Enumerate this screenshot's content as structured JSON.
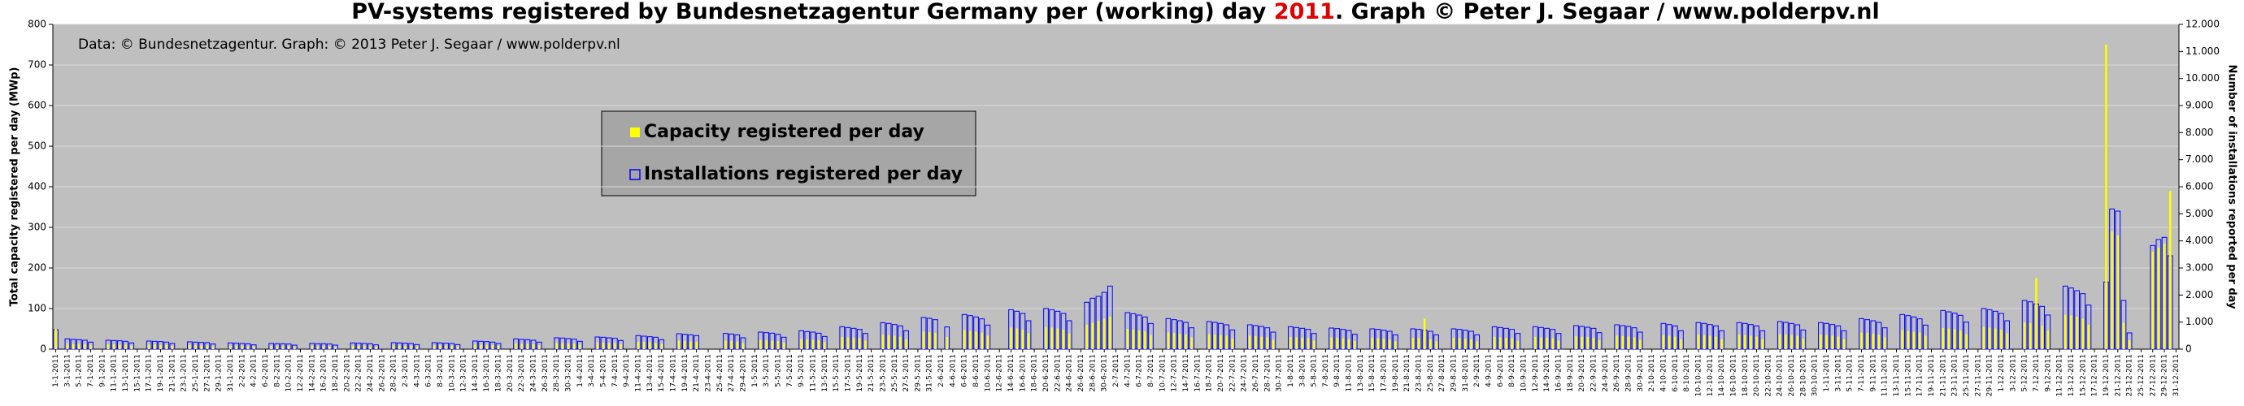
{
  "chart_data": {
    "type": "bar",
    "title": {
      "before": "PV-systems registered by Bundesnetzagentur Germany per (working) day ",
      "highlight": "2011",
      "after": ". Graph © Peter J. Segaar / www.polderpv.nl"
    },
    "annotation": "Data: © Bundesnetzagentur. Graph: © 2013 Peter J. Segaar / www.polderpv.nl",
    "ylabel": "Total capacity registered per day (MWp)",
    "y2label": "Number of installations reported per day",
    "ylim": [
      0,
      800
    ],
    "yticks": [
      0,
      100,
      200,
      300,
      400,
      500,
      600,
      700,
      800
    ],
    "y2lim": [
      0,
      12000
    ],
    "y2ticks": [
      0,
      {
        "value": 1000,
        "label": "1.000"
      },
      {
        "value": 2000,
        "label": "2.000"
      },
      {
        "value": 3000,
        "label": "3.000"
      },
      {
        "value": 4000,
        "label": "4.000"
      },
      {
        "value": 5000,
        "label": "5.000"
      },
      {
        "value": 6000,
        "label": "6.000"
      },
      {
        "value": 7000,
        "label": "7.000"
      },
      {
        "value": 8000,
        "label": "8.000"
      },
      {
        "value": 9000,
        "label": "9.000"
      },
      {
        "value": 10000,
        "label": "10.000"
      },
      {
        "value": 11000,
        "label": "11.000"
      },
      {
        "value": 12000,
        "label": "12.000"
      }
    ],
    "grid": true,
    "legend": "top-left",
    "categories": [
      "1-1-2011",
      null,
      "3-1-2011",
      null,
      "5-1-2011",
      null,
      "7-1-2011",
      null,
      "9-1-2011",
      null,
      "11-1-2011",
      null,
      "13-1-2011",
      null,
      "15-1-2011",
      null,
      "17-1-2011",
      null,
      "19-1-2011",
      null,
      "21-1-2011",
      null,
      "23-1-2011",
      null,
      "25-1-2011",
      null,
      "27-1-2011",
      null,
      "29-1-2011",
      null,
      "31-1-2011",
      null,
      "2-2-2011",
      null,
      "4-2-2011",
      null,
      "6-2-2011",
      null,
      "8-2-2011",
      null,
      "10-2-2011",
      null,
      "12-2-2011",
      null,
      "14-2-2011",
      null,
      "16-2-2011",
      null,
      "18-2-2011",
      null,
      "20-2-2011",
      null,
      "22-2-2011",
      null,
      "24-2-2011",
      null,
      "26-2-2011",
      null,
      "28-2-2011",
      null,
      "2-3-2011",
      null,
      "4-3-2011",
      null,
      "6-3-2011",
      null,
      "8-3-2011",
      null,
      "10-3-2011",
      null,
      "12-3-2011",
      null,
      "14-3-2011",
      null,
      "16-3-2011",
      null,
      "18-3-2011",
      null,
      "20-3-2011",
      null,
      "22-3-2011",
      null,
      "24-3-2011",
      null,
      "26-3-2011",
      null,
      "28-3-2011",
      null,
      "30-3-2011",
      null,
      "1-4-2011",
      null,
      "3-4-2011",
      null,
      "5-4-2011",
      null,
      "7-4-2011",
      null,
      "9-4-2011",
      null,
      "11-4-2011",
      null,
      "13-4-2011",
      null,
      "15-4-2011",
      null,
      "17-4-2011",
      null,
      "19-4-2011",
      null,
      "21-4-2011",
      null,
      "23-4-2011",
      null,
      "25-4-2011",
      null,
      "27-4-2011",
      null,
      "29-4-2011",
      null,
      "1-5-2011",
      null,
      "3-5-2011",
      null,
      "5-5-2011",
      null,
      "7-5-2011",
      null,
      "9-5-2011",
      null,
      "11-5-2011",
      null,
      "13-5-2011",
      null,
      "15-5-2011",
      null,
      "17-5-2011",
      null,
      "19-5-2011",
      null,
      "21-5-2011",
      null,
      "23-5-2011",
      null,
      "25-5-2011",
      null,
      "27-5-2011",
      null,
      "29-5-2011",
      null,
      "31-5-2011",
      null,
      "2-6-2011",
      null,
      "4-6-2011",
      null,
      "6-6-2011",
      null,
      "8-6-2011",
      null,
      "10-6-2011",
      null,
      "12-6-2011",
      null,
      "14-6-2011",
      null,
      "16-6-2011",
      null,
      "18-6-2011",
      null,
      "20-6-2011",
      null,
      "22-6-2011",
      null,
      "24-6-2011",
      null,
      "26-6-2011",
      null,
      "28-6-2011",
      null,
      "30-6-2011",
      null,
      "2-7-2011",
      null,
      "4-7-2011",
      null,
      "6-7-2011",
      null,
      "8-7-2011",
      null,
      "10-7-2011",
      null,
      "12-7-2011",
      null,
      "14-7-2011",
      null,
      "16-7-2011",
      null,
      "18-7-2011",
      null,
      "20-7-2011",
      null,
      "22-7-2011",
      null,
      "24-7-2011",
      null,
      "26-7-2011",
      null,
      "28-7-2011",
      null,
      "30-7-2011",
      null,
      "1-8-2011",
      null,
      "3-8-2011",
      null,
      "5-8-2011",
      null,
      "7-8-2011",
      null,
      "9-8-2011",
      null,
      "11-8-2011",
      null,
      "13-8-2011",
      null,
      "15-8-2011",
      null,
      "17-8-2011",
      null,
      "19-8-2011",
      null,
      "21-8-2011",
      null,
      "23-8-2011",
      null,
      "25-8-2011",
      null,
      "27-8-2011",
      null,
      "29-8-2011",
      null,
      "31-8-2011",
      null,
      "2-9-2011",
      null,
      "4-9-2011",
      null,
      "6-9-2011",
      null,
      "8-9-2011",
      null,
      "10-9-2011",
      null,
      "12-9-2011",
      null,
      "14-9-2011",
      null,
      "16-9-2011",
      null,
      "18-9-2011",
      null,
      "20-9-2011",
      null,
      "22-9-2011",
      null,
      "24-9-2011",
      null,
      "26-9-2011",
      null,
      "28-9-2011",
      null,
      "30-9-2011",
      null,
      "2-10-2011",
      null,
      "4-10-2011",
      null,
      "6-10-2011",
      null,
      "8-10-2011",
      null,
      "10-10-2011",
      null,
      "12-10-2011",
      null,
      "14-10-2011",
      null,
      "16-10-2011",
      null,
      "18-10-2011",
      null,
      "20-10-2011",
      null,
      "22-10-2011",
      null,
      "24-10-2011",
      null,
      "26-10-2011",
      null,
      "28-10-2011",
      null,
      "30-10-2011",
      null,
      "1-11-2011",
      null,
      "3-11-2011",
      null,
      "5-11-2011",
      null,
      "7-11-2011",
      null,
      "9-11-2011",
      null,
      "11-11-2011",
      null,
      "13-11-2011",
      null,
      "15-11-2011",
      null,
      "17-11-2011",
      null,
      "19-11-2011",
      null,
      "21-11-2011",
      null,
      "23-11-2011",
      null,
      "25-11-2011",
      null,
      "27-11-2011",
      null,
      "29-11-2011",
      null,
      "1-12-2011",
      null,
      "3-12-2011",
      null,
      "5-12-2011",
      null,
      "7-12-2011",
      null,
      "9-12-2011",
      null,
      "11-12-2011",
      null,
      "13-12-2011",
      null,
      "15-12-2011",
      null,
      "17-12-2011",
      null,
      "19-12-2011",
      null,
      "21-12-2011",
      null,
      "23-12-2011",
      null,
      "25-12-2011",
      null,
      "27-12-2011",
      null,
      "29-12-2011",
      null,
      "31-12-2011"
    ],
    "series": [
      {
        "name": "Installations registered per day",
        "color": "#0000ff",
        "axis": "y2",
        "values": [
          720,
          0,
          380,
          360,
          350,
          330,
          260,
          0,
          0,
          330,
          320,
          310,
          290,
          230,
          0,
          0,
          300,
          290,
          280,
          260,
          210,
          0,
          0,
          270,
          260,
          250,
          240,
          190,
          0,
          0,
          230,
          220,
          210,
          200,
          160,
          0,
          0,
          210,
          200,
          200,
          190,
          150,
          0,
          0,
          210,
          200,
          200,
          190,
          150,
          0,
          0,
          230,
          220,
          210,
          200,
          160,
          0,
          0,
          240,
          230,
          220,
          210,
          170,
          0,
          0,
          240,
          230,
          220,
          210,
          170,
          0,
          0,
          300,
          290,
          280,
          260,
          210,
          0,
          0,
          380,
          360,
          350,
          330,
          260,
          0,
          0,
          420,
          410,
          390,
          370,
          290,
          0,
          0,
          450,
          440,
          420,
          400,
          320,
          0,
          0,
          500,
          480,
          460,
          440,
          350,
          0,
          0,
          570,
          550,
          530,
          500,
          0,
          0,
          0,
          0,
          580,
          560,
          530,
          420,
          0,
          0,
          630,
          610,
          590,
          550,
          440,
          0,
          0,
          680,
          650,
          630,
          590,
          470,
          0,
          0,
          830,
          800,
          770,
          730,
          580,
          0,
          0,
          980,
          950,
          910,
          860,
          680,
          0,
          0,
          1170,
          1140,
          1090,
          0,
          820,
          0,
          0,
          1280,
          1240,
          1190,
          1120,
          890,
          0,
          0,
          0,
          1460,
          1400,
          1320,
          1050,
          0,
          0,
          1500,
          1460,
          1400,
          1320,
          1050,
          0,
          0,
          1730,
          1880,
          1950,
          2100,
          2330,
          0,
          0,
          1350,
          1310,
          1260,
          1190,
          950,
          0,
          0,
          1130,
          1090,
          1050,
          990,
          790,
          0,
          0,
          1020,
          990,
          950,
          900,
          710,
          0,
          0,
          900,
          870,
          840,
          790,
          630,
          0,
          0,
          830,
          800,
          770,
          730,
          580,
          0,
          0,
          780,
          760,
          730,
          690,
          550,
          0,
          0,
          750,
          730,
          700,
          660,
          530,
          0,
          0,
          750,
          730,
          700,
          660,
          530,
          0,
          0,
          750,
          730,
          700,
          660,
          530,
          0,
          0,
          830,
          800,
          770,
          730,
          580,
          0,
          0,
          830,
          800,
          770,
          730,
          580,
          0,
          0,
          870,
          840,
          810,
          770,
          610,
          0,
          0,
          900,
          870,
          840,
          790,
          630,
          0,
          0,
          0,
          950,
          910,
          860,
          680,
          0,
          0,
          980,
          950,
          910,
          860,
          680,
          0,
          0,
          980,
          950,
          910,
          860,
          680,
          0,
          0,
          1020,
          990,
          950,
          900,
          710,
          0,
          0,
          980,
          950,
          910,
          860,
          680,
          0,
          0,
          1130,
          1090,
          1050,
          990,
          790,
          0,
          0,
          1280,
          1240,
          1190,
          1120,
          890,
          0,
          0,
          1430,
          1380,
          1330,
          1250,
          1000,
          0,
          0,
          1500,
          1460,
          1400,
          1320,
          1050,
          0,
          0,
          1800,
          1750,
          1670,
          1580,
          1260,
          0,
          0,
          2330,
          2260,
          2160,
          2050,
          1630,
          0,
          0,
          2480,
          5180,
          5100,
          1800,
          600,
          0,
          0,
          0,
          3830,
          4050,
          4130,
          3450,
          0
        ]
      },
      {
        "name": "Capacity registered per day",
        "color": "#ffff00",
        "values": [
          50,
          0,
          14,
          13,
          13,
          12,
          10,
          0,
          0,
          12,
          12,
          11,
          11,
          8,
          0,
          0,
          11,
          11,
          10,
          10,
          8,
          0,
          0,
          10,
          10,
          9,
          9,
          7,
          0,
          0,
          8,
          8,
          8,
          7,
          6,
          0,
          0,
          8,
          7,
          7,
          7,
          5,
          0,
          0,
          8,
          7,
          7,
          7,
          5,
          0,
          0,
          8,
          8,
          8,
          7,
          6,
          0,
          0,
          9,
          9,
          8,
          8,
          6,
          0,
          0,
          9,
          9,
          8,
          8,
          6,
          0,
          0,
          11,
          11,
          10,
          10,
          8,
          0,
          0,
          14,
          13,
          13,
          12,
          10,
          0,
          0,
          15,
          15,
          14,
          14,
          11,
          0,
          0,
          17,
          16,
          15,
          15,
          12,
          0,
          0,
          18,
          18,
          17,
          16,
          13,
          0,
          0,
          21,
          20,
          19,
          18,
          0,
          0,
          0,
          0,
          21,
          20,
          19,
          15,
          0,
          0,
          23,
          22,
          21,
          20,
          16,
          0,
          0,
          25,
          24,
          23,
          22,
          17,
          0,
          0,
          30,
          29,
          28,
          27,
          21,
          0,
          0,
          36,
          35,
          33,
          31,
          25,
          0,
          0,
          43,
          42,
          40,
          0,
          30,
          0,
          0,
          47,
          45,
          43,
          41,
          33,
          0,
          0,
          0,
          53,
          51,
          48,
          39,
          0,
          0,
          55,
          53,
          51,
          48,
          39,
          0,
          0,
          60,
          65,
          70,
          75,
          80,
          0,
          0,
          50,
          48,
          46,
          44,
          35,
          0,
          0,
          41,
          40,
          38,
          36,
          29,
          0,
          0,
          37,
          36,
          35,
          33,
          26,
          0,
          0,
          33,
          32,
          31,
          29,
          23,
          0,
          0,
          30,
          29,
          28,
          27,
          21,
          0,
          0,
          29,
          28,
          27,
          25,
          20,
          0,
          0,
          28,
          27,
          26,
          24,
          19,
          0,
          0,
          28,
          27,
          75,
          24,
          19,
          0,
          0,
          28,
          27,
          26,
          24,
          19,
          0,
          0,
          30,
          29,
          28,
          27,
          21,
          0,
          0,
          30,
          29,
          28,
          27,
          21,
          0,
          0,
          32,
          31,
          30,
          28,
          22,
          0,
          0,
          33,
          32,
          31,
          29,
          23,
          0,
          0,
          0,
          35,
          33,
          31,
          25,
          0,
          0,
          36,
          35,
          33,
          31,
          25,
          0,
          0,
          36,
          35,
          33,
          31,
          25,
          0,
          0,
          37,
          36,
          35,
          33,
          26,
          0,
          0,
          36,
          35,
          33,
          31,
          25,
          0,
          0,
          41,
          40,
          38,
          36,
          29,
          0,
          0,
          47,
          45,
          43,
          41,
          33,
          0,
          0,
          52,
          51,
          49,
          46,
          37,
          0,
          0,
          55,
          53,
          51,
          48,
          39,
          0,
          0,
          66,
          64,
          175,
          58,
          46,
          0,
          0,
          85,
          83,
          80,
          75,
          60,
          0,
          0,
          750,
          290,
          280,
          65,
          22,
          0,
          0,
          0,
          240,
          250,
          260,
          390,
          0
        ]
      }
    ]
  }
}
